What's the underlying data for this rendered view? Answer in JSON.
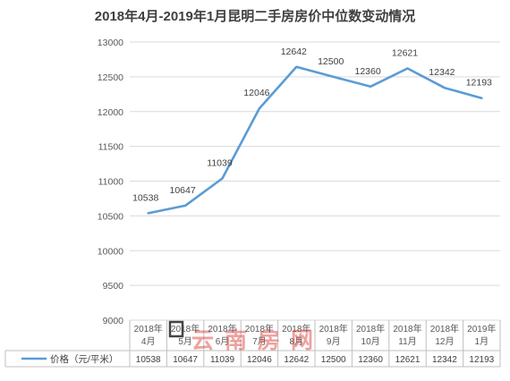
{
  "chart_data": {
    "type": "line",
    "title": "2018年4月-2019年1月昆明二手房房价中位数变动情况",
    "categories": [
      [
        "2018年",
        "4月"
      ],
      [
        "2018年",
        "5月"
      ],
      [
        "2018年",
        "6月"
      ],
      [
        "2018年",
        "7月"
      ],
      [
        "2018年",
        "8月"
      ],
      [
        "2018年",
        "9月"
      ],
      [
        "2018年",
        "10月"
      ],
      [
        "2018年",
        "11月"
      ],
      [
        "2018年",
        "12月"
      ],
      [
        "2019年",
        "1月"
      ]
    ],
    "series": [
      {
        "name": "价格（元/平米）",
        "color": "#5B9BD5",
        "values": [
          10538,
          10647,
          11039,
          12046,
          12642,
          12500,
          12360,
          12621,
          12342,
          12193
        ]
      }
    ],
    "ylim": [
      9000,
      13000
    ],
    "yticks": [
      9000,
      9500,
      10000,
      10500,
      11000,
      11500,
      12000,
      12500,
      13000
    ],
    "grid": true,
    "data_table": true,
    "watermark": "云南房网"
  }
}
